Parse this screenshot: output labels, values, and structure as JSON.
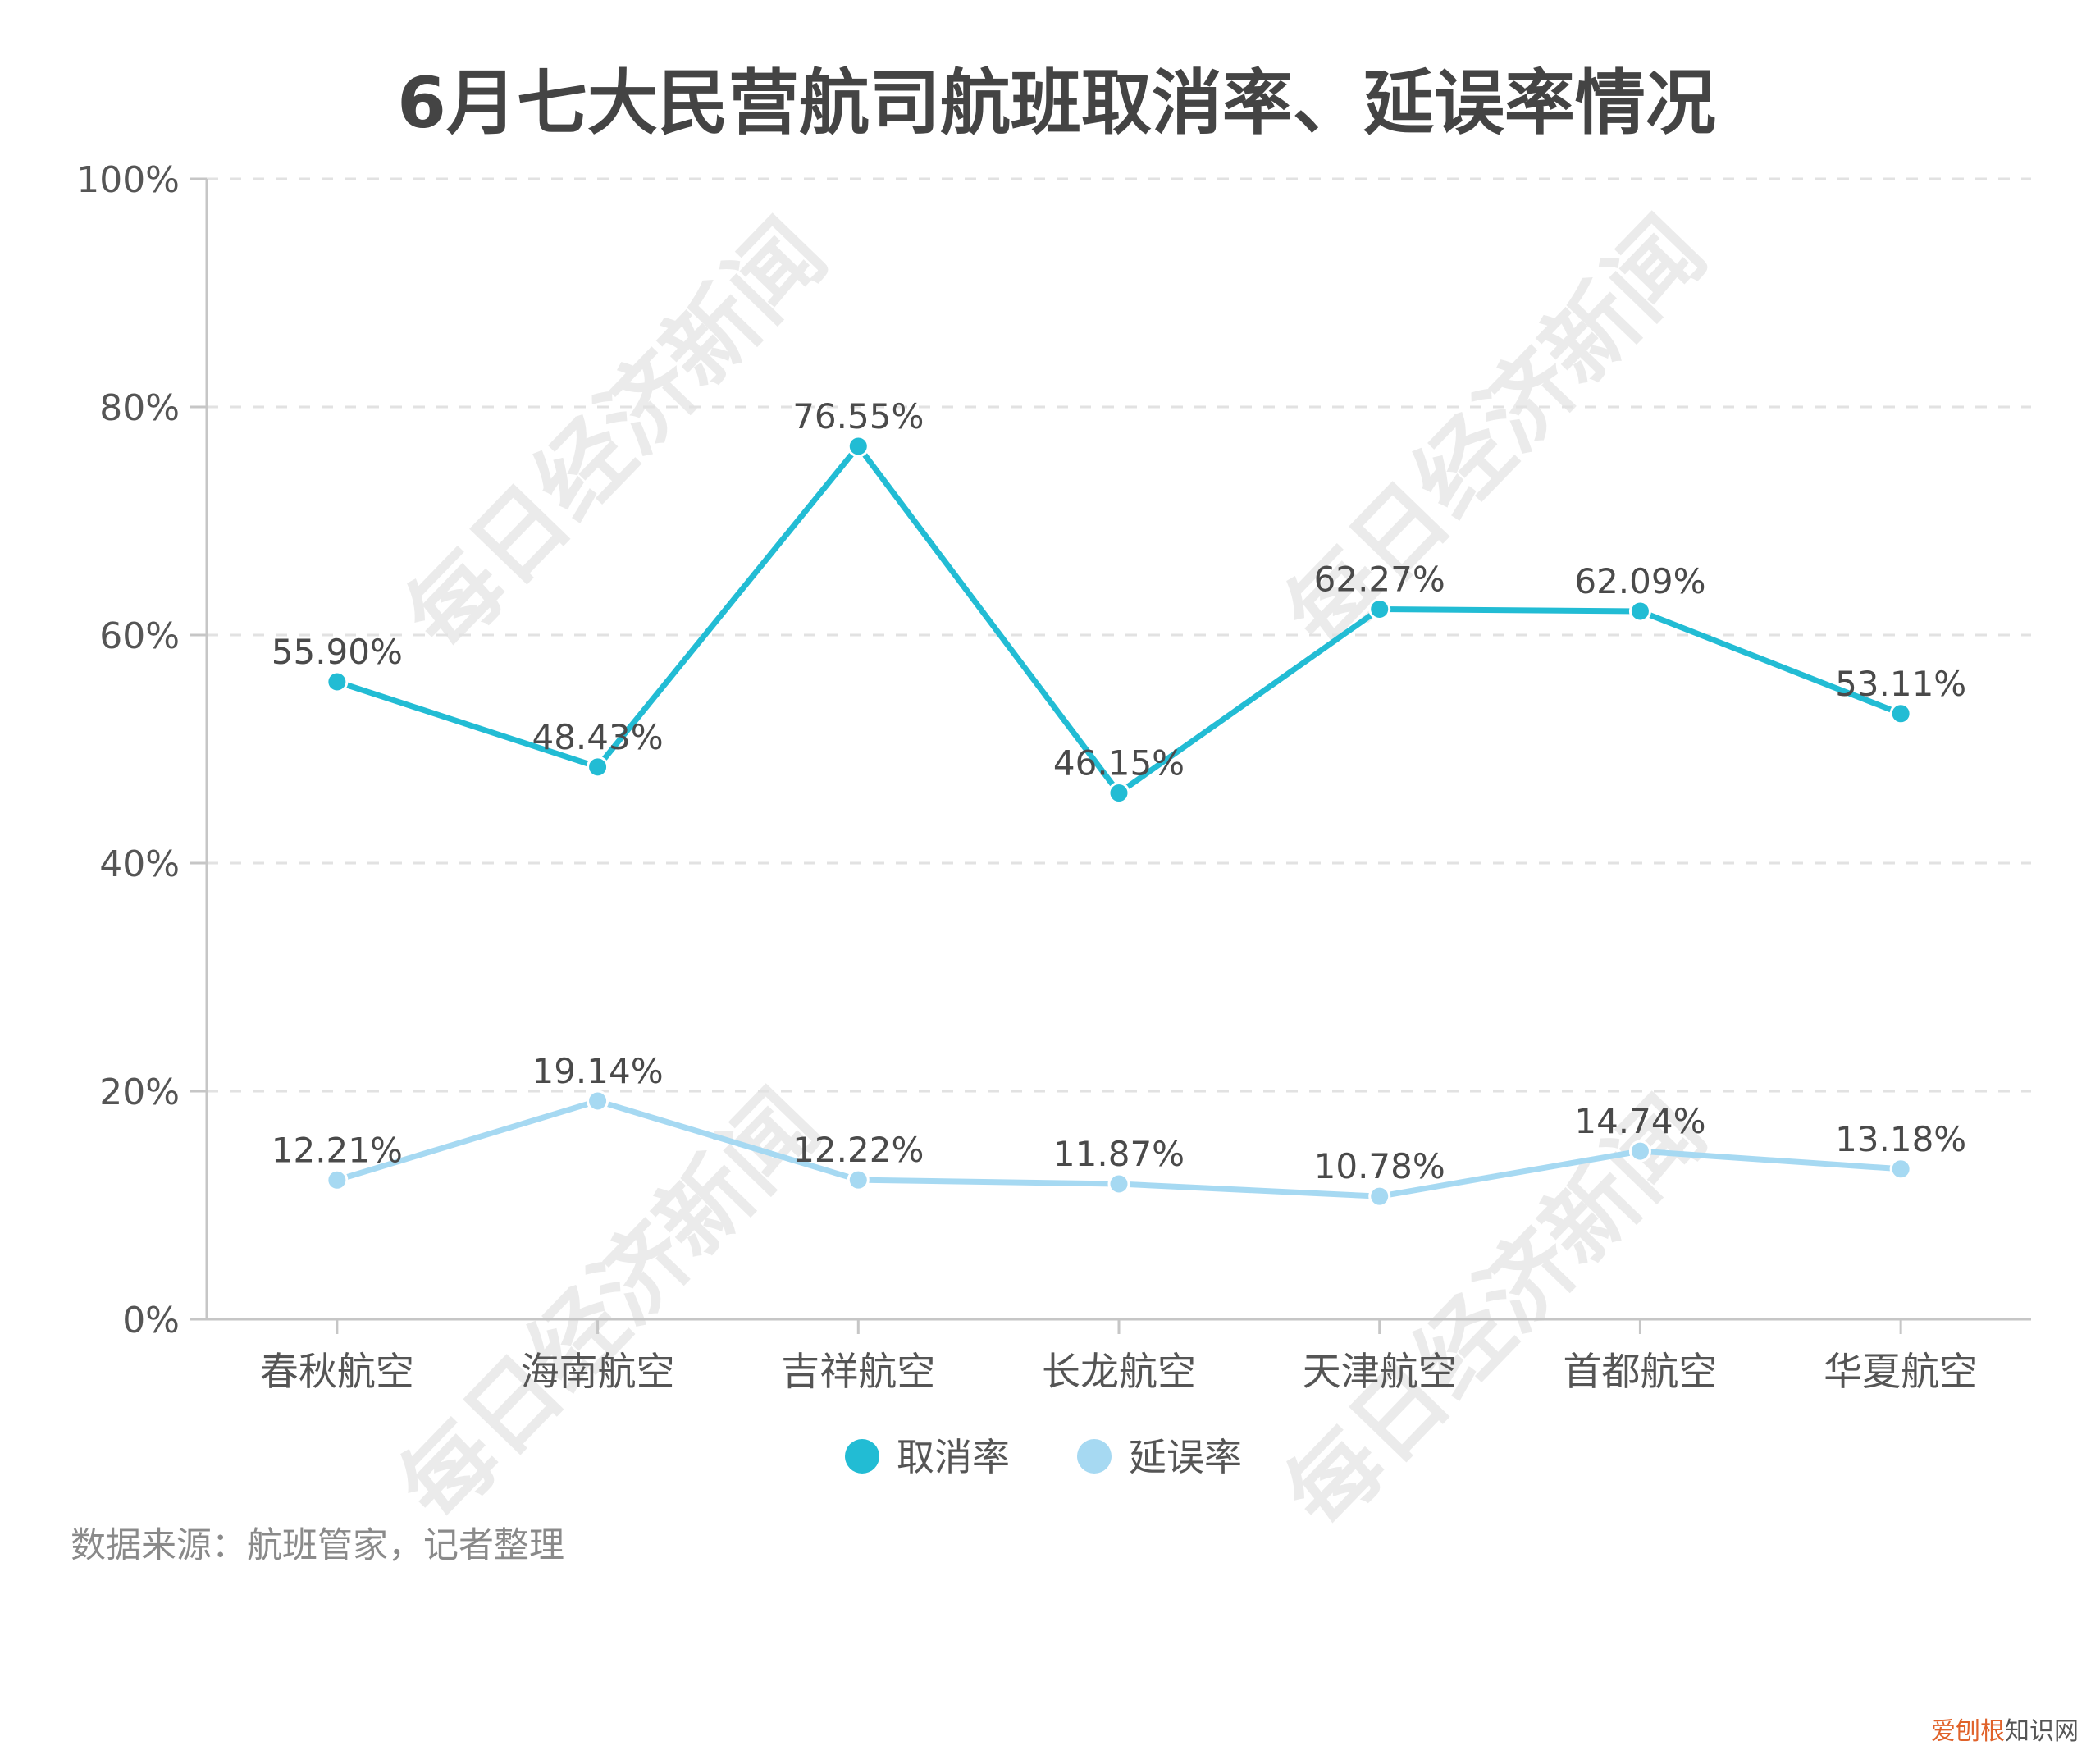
{
  "title": "6月七大民营航司航班取消率、延误率情况",
  "source_note": "数据来源：航班管家，记者整理",
  "watermark_text": "每日经济新闻",
  "credit": {
    "part1": "爱刨根",
    "part2": "知识网"
  },
  "colors": {
    "cancel_rate": "#22bcd4",
    "delay_rate": "#a6d9f2",
    "axis": "#c6c6c6",
    "grid": "#e2e2e2",
    "text": "#555555",
    "title": "#444444",
    "watermark": "#ebebeb"
  },
  "legend": [
    {
      "label": "取消率",
      "color": "#22bcd4"
    },
    {
      "label": "延误率",
      "color": "#a6d9f2"
    }
  ],
  "chart_data": {
    "type": "line",
    "title": "6月七大民营航司航班取消率、延误率情况",
    "xlabel": "",
    "ylabel": "",
    "categories": [
      "春秋航空",
      "海南航空",
      "吉祥航空",
      "长龙航空",
      "天津航空",
      "首都航空",
      "华夏航空"
    ],
    "series": [
      {
        "name": "取消率",
        "values": [
          55.9,
          48.43,
          76.55,
          46.15,
          62.27,
          62.09,
          53.11
        ],
        "labels": [
          "55.90%",
          "48.43%",
          "76.55%",
          "46.15%",
          "62.27%",
          "62.09%",
          "53.11%"
        ]
      },
      {
        "name": "延误率",
        "values": [
          12.21,
          19.14,
          12.22,
          11.87,
          10.78,
          14.74,
          13.18
        ],
        "labels": [
          "12.21%",
          "19.14%",
          "12.22%",
          "11.87%",
          "10.78%",
          "14.74%",
          "13.18%"
        ]
      }
    ],
    "ylim": [
      0,
      100
    ],
    "yticks": [
      0,
      20,
      40,
      60,
      80,
      100
    ],
    "ytick_labels": [
      "0%",
      "20%",
      "40%",
      "60%",
      "80%",
      "100%"
    ],
    "grid": true,
    "grid_style": "dashed-horizontal",
    "legend_position": "bottom-center",
    "data_labels": true
  }
}
